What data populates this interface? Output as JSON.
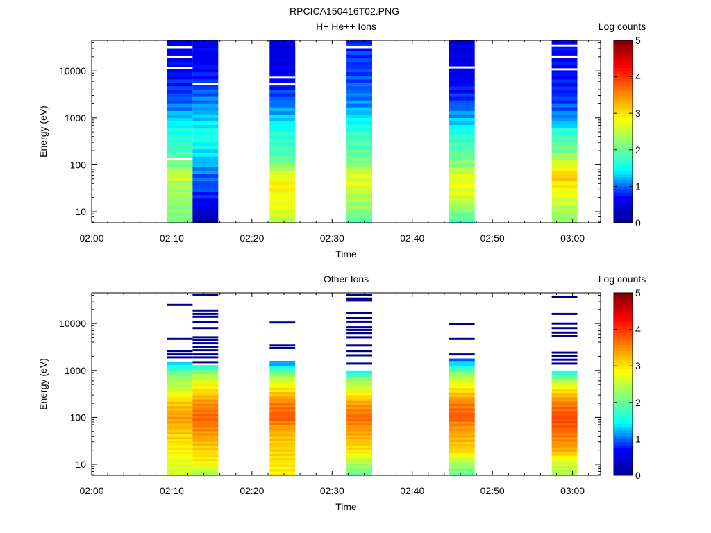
{
  "figure": {
    "title": "RPCICA150416T02.PNG"
  },
  "palette": {
    "gap": "#ffffff",
    "axis": "#000000",
    "colormap": [
      "#00008f",
      "#0000ff",
      "#00ffff",
      "#80ff80",
      "#ffff00",
      "#ff8000",
      "#ff0000",
      "#800000"
    ]
  },
  "chart_data": [
    {
      "type": "heatmap",
      "title": "H+ He++ Ions",
      "xlabel": "Time",
      "ylabel": "Energy (eV)",
      "x_ticks": [
        "02:00",
        "02:10",
        "02:20",
        "02:30",
        "02:40",
        "02:50",
        "03:00"
      ],
      "x_range_minutes": [
        0,
        63.5
      ],
      "y_ticks": [
        "10",
        "100",
        "1000",
        "10000"
      ],
      "y_scale": "log",
      "y_range": [
        5.8,
        45000
      ],
      "colorbar": {
        "label": "Log counts",
        "ticks": [
          "0",
          "1",
          "2",
          "3",
          "4",
          "5"
        ],
        "range": [
          0,
          5
        ]
      },
      "blocks": [
        {
          "t_start": 9.4,
          "t_end": 12.6,
          "profile": [
            [
              6,
              2.1
            ],
            [
              11,
              2.2
            ],
            [
              22,
              2.3
            ],
            [
              40,
              2.4
            ],
            [
              60,
              2.6
            ],
            [
              80,
              2.4
            ],
            [
              100,
              2.1
            ],
            [
              150,
              1.9
            ],
            [
              200,
              1.8
            ],
            [
              300,
              1.7
            ],
            [
              600,
              1.5
            ],
            [
              1000,
              1.3
            ],
            [
              2000,
              1.0
            ],
            [
              5000,
              0.8
            ],
            [
              10000,
              0.7
            ],
            [
              45000,
              0.6
            ]
          ],
          "gaps": [
            135,
            11500,
            20000,
            32000
          ]
        },
        {
          "t_start": 12.6,
          "t_end": 15.8,
          "profile": [
            [
              6,
              0.1
            ],
            [
              11,
              0.5
            ],
            [
              30,
              0.9
            ],
            [
              60,
              1.0
            ],
            [
              100,
              1.2
            ],
            [
              200,
              1.4
            ],
            [
              400,
              1.6
            ],
            [
              1000,
              1.3
            ],
            [
              3000,
              1.0
            ],
            [
              10000,
              0.7
            ],
            [
              45000,
              0.6
            ]
          ],
          "gaps": [
            5200
          ]
        },
        {
          "t_start": 22.2,
          "t_end": 25.4,
          "profile": [
            [
              6,
              2.4
            ],
            [
              11,
              2.7
            ],
            [
              20,
              2.8
            ],
            [
              40,
              2.9
            ],
            [
              70,
              2.6
            ],
            [
              100,
              2.2
            ],
            [
              150,
              1.9
            ],
            [
              200,
              1.8
            ],
            [
              400,
              1.7
            ],
            [
              1000,
              1.3
            ],
            [
              3000,
              0.9
            ],
            [
              10000,
              0.6
            ],
            [
              45000,
              0.5
            ]
          ],
          "gaps": [
            5200,
            7200
          ]
        },
        {
          "t_start": 31.8,
          "t_end": 35.0,
          "profile": [
            [
              6,
              1.9
            ],
            [
              11,
              2.2
            ],
            [
              22,
              2.4
            ],
            [
              40,
              2.7
            ],
            [
              70,
              2.6
            ],
            [
              100,
              2.2
            ],
            [
              200,
              1.9
            ],
            [
              400,
              1.8
            ],
            [
              800,
              1.5
            ],
            [
              2000,
              1.1
            ],
            [
              8000,
              0.9
            ],
            [
              45000,
              0.8
            ]
          ],
          "gaps": [
            32000
          ]
        },
        {
          "t_start": 44.6,
          "t_end": 47.8,
          "profile": [
            [
              6,
              1.8
            ],
            [
              11,
              2.2
            ],
            [
              20,
              2.6
            ],
            [
              40,
              2.8
            ],
            [
              70,
              2.6
            ],
            [
              100,
              2.2
            ],
            [
              200,
              1.9
            ],
            [
              500,
              1.6
            ],
            [
              1000,
              1.2
            ],
            [
              3000,
              0.8
            ],
            [
              10000,
              0.6
            ],
            [
              45000,
              0.5
            ]
          ],
          "gaps": [
            11900
          ]
        },
        {
          "t_start": 57.4,
          "t_end": 60.6,
          "profile": [
            [
              6,
              2.2
            ],
            [
              11,
              2.4
            ],
            [
              22,
              2.7
            ],
            [
              40,
              3.0
            ],
            [
              60,
              3.2
            ],
            [
              100,
              2.7
            ],
            [
              200,
              2.1
            ],
            [
              500,
              1.7
            ],
            [
              800,
              1.2
            ],
            [
              2000,
              0.9
            ],
            [
              8000,
              0.7
            ],
            [
              45000,
              0.7
            ]
          ],
          "gaps": [
            10800,
            20000,
            34000
          ]
        }
      ]
    },
    {
      "type": "heatmap",
      "title": "Other Ions",
      "xlabel": "Time",
      "ylabel": "Energy (eV)",
      "x_ticks": [
        "02:00",
        "02:10",
        "02:20",
        "02:30",
        "02:40",
        "02:50",
        "03:00"
      ],
      "x_range_minutes": [
        0,
        63.5
      ],
      "y_ticks": [
        "10",
        "100",
        "1000",
        "10000"
      ],
      "y_scale": "log",
      "y_range": [
        5.8,
        45000
      ],
      "colorbar": {
        "label": "Log counts",
        "ticks": [
          "0",
          "1",
          "2",
          "3",
          "4",
          "5"
        ],
        "range": [
          0,
          5
        ]
      },
      "blocks": [
        {
          "t_start": 9.4,
          "t_end": 12.6,
          "profile": [
            [
              6,
              2.6
            ],
            [
              11,
              2.7
            ],
            [
              20,
              2.9
            ],
            [
              40,
              3.1
            ],
            [
              70,
              3.3
            ],
            [
              100,
              3.4
            ],
            [
              200,
              3.2
            ],
            [
              400,
              2.6
            ],
            [
              800,
              2.2
            ],
            [
              1200,
              1.6
            ],
            [
              1500,
              1.3
            ]
          ],
          "lines": [
            1900,
            2200,
            2600,
            4700,
            25000
          ]
        },
        {
          "t_start": 12.6,
          "t_end": 15.8,
          "profile": [
            [
              6,
              2.3
            ],
            [
              11,
              2.9
            ],
            [
              20,
              3.1
            ],
            [
              40,
              3.4
            ],
            [
              70,
              3.6
            ],
            [
              100,
              3.7
            ],
            [
              200,
              3.5
            ],
            [
              400,
              3.0
            ],
            [
              800,
              2.4
            ],
            [
              1300,
              1.5
            ]
          ],
          "lines": [
            1500,
            1900,
            2200,
            2700,
            3200,
            3800,
            4500,
            5100,
            8000,
            10800,
            14000,
            16000,
            19000,
            41000
          ]
        },
        {
          "t_start": 22.2,
          "t_end": 25.4,
          "profile": [
            [
              6,
              2.9
            ],
            [
              11,
              3.0
            ],
            [
              20,
              3.1
            ],
            [
              40,
              3.2
            ],
            [
              70,
              3.5
            ],
            [
              100,
              3.8
            ],
            [
              200,
              3.6
            ],
            [
              400,
              3.0
            ],
            [
              700,
              2.5
            ],
            [
              1000,
              1.9
            ],
            [
              1300,
              1.3
            ],
            [
              1600,
              1.0
            ]
          ],
          "lines": [
            3000,
            3400,
            10500
          ]
        },
        {
          "t_start": 31.8,
          "t_end": 35.0,
          "profile": [
            [
              6,
              2.0
            ],
            [
              11,
              2.4
            ],
            [
              20,
              3.0
            ],
            [
              40,
              3.3
            ],
            [
              70,
              3.5
            ],
            [
              100,
              3.7
            ],
            [
              200,
              3.4
            ],
            [
              400,
              2.7
            ],
            [
              700,
              2.2
            ],
            [
              1000,
              1.4
            ]
          ],
          "lines": [
            1400,
            2100,
            2600,
            3400,
            5100,
            6300,
            7300,
            8300,
            11000,
            13000,
            17000,
            31000,
            34000,
            41000
          ]
        },
        {
          "t_start": 44.6,
          "t_end": 47.8,
          "profile": [
            [
              6,
              2.0
            ],
            [
              11,
              2.4
            ],
            [
              20,
              3.1
            ],
            [
              40,
              3.3
            ],
            [
              70,
              3.5
            ],
            [
              100,
              3.8
            ],
            [
              200,
              3.6
            ],
            [
              400,
              3.0
            ],
            [
              800,
              2.4
            ],
            [
              1200,
              1.6
            ],
            [
              1800,
              1.0
            ]
          ],
          "lines": [
            2200,
            4700,
            9600
          ]
        },
        {
          "t_start": 57.4,
          "t_end": 60.6,
          "profile": [
            [
              6,
              2.4
            ],
            [
              11,
              2.6
            ],
            [
              20,
              3.3
            ],
            [
              40,
              3.6
            ],
            [
              70,
              3.8
            ],
            [
              100,
              3.9
            ],
            [
              200,
              3.6
            ],
            [
              400,
              3.0
            ],
            [
              700,
              2.2
            ],
            [
              1000,
              1.5
            ]
          ],
          "lines": [
            1400,
            1700,
            2000,
            2400,
            5400,
            6400,
            8000,
            10000,
            16000,
            37000
          ]
        }
      ]
    }
  ]
}
